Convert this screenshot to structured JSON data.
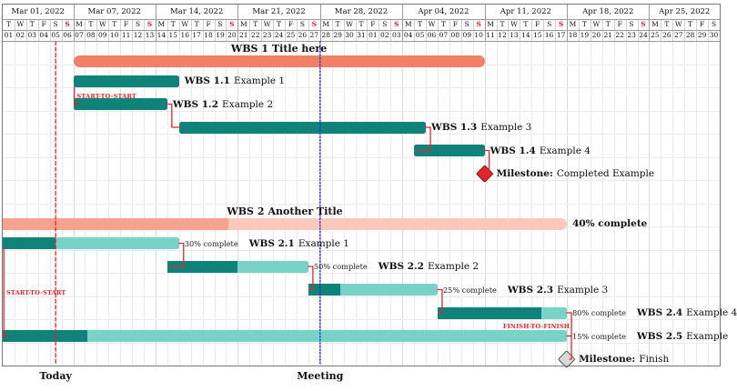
{
  "chart_data": {
    "type": "gantt",
    "timeline": {
      "weeks": [
        {
          "label": "Mar 01, 2022",
          "span": 6
        },
        {
          "label": "Mar 07, 2022",
          "span": 7
        },
        {
          "label": "Mar 14, 2022",
          "span": 7
        },
        {
          "label": "Mar 21, 2022",
          "span": 7
        },
        {
          "label": "Mar 28, 2022",
          "span": 7
        },
        {
          "label": "Apr 04, 2022",
          "span": 7
        },
        {
          "label": "Apr 11, 2022",
          "span": 7
        },
        {
          "label": "Apr 18, 2022",
          "span": 7
        },
        {
          "label": "Apr 25, 2022",
          "span": 6
        }
      ],
      "day_letters": [
        "T",
        "W",
        "T",
        "F",
        "S",
        "S",
        "M",
        "T",
        "W",
        "T",
        "F",
        "S",
        "S",
        "M",
        "T",
        "W",
        "T",
        "F",
        "S",
        "S",
        "M",
        "T",
        "W",
        "T",
        "F",
        "S",
        "S",
        "M",
        "T",
        "W",
        "T",
        "F",
        "S",
        "S",
        "M",
        "T",
        "W",
        "T",
        "F",
        "S",
        "S",
        "M",
        "T",
        "W",
        "T",
        "F",
        "S",
        "S",
        "M",
        "T",
        "W",
        "T",
        "F",
        "S",
        "S",
        "M",
        "T",
        "W",
        "T",
        "F",
        "S"
      ],
      "day_numbers": [
        "01",
        "02",
        "03",
        "04",
        "05",
        "06",
        "07",
        "08",
        "09",
        "10",
        "11",
        "12",
        "13",
        "14",
        "15",
        "16",
        "17",
        "18",
        "19",
        "20",
        "21",
        "22",
        "23",
        "24",
        "25",
        "26",
        "27",
        "28",
        "29",
        "30",
        "31",
        "01",
        "02",
        "03",
        "04",
        "05",
        "06",
        "07",
        "08",
        "09",
        "10",
        "11",
        "12",
        "13",
        "14",
        "15",
        "16",
        "17",
        "18",
        "19",
        "20",
        "21",
        "22",
        "23",
        "24",
        "25",
        "26",
        "27",
        "28",
        "29",
        "30"
      ],
      "sundays": [
        5,
        12,
        19,
        26,
        33,
        40,
        47,
        54
      ]
    },
    "tasks": [
      {
        "id": "g1",
        "row": 0,
        "kind": "group",
        "name_bold": "WBS 1",
        "name_rest": "Title here",
        "start": 6,
        "end": 41
      },
      {
        "id": "t11",
        "row": 1,
        "kind": "task",
        "name_bold": "WBS 1.1",
        "name_rest": "Example 1",
        "start": 6,
        "end": 15
      },
      {
        "id": "t12",
        "row": 2,
        "kind": "task",
        "name_bold": "WBS 1.2",
        "name_rest": "Example 2",
        "start": 6,
        "end": 14
      },
      {
        "id": "t13",
        "row": 3,
        "kind": "task",
        "name_bold": "WBS 1.3",
        "name_rest": "Example 3",
        "start": 15,
        "end": 36
      },
      {
        "id": "t14",
        "row": 4,
        "kind": "task",
        "name_bold": "WBS 1.4",
        "name_rest": "Example 4",
        "start": 35,
        "end": 41
      },
      {
        "id": "m1",
        "row": 5,
        "kind": "milestone",
        "name_bold": "Milestone:",
        "name_rest": "Completed Example",
        "at": 41,
        "fill": "#e3242b",
        "stroke": "#8b1a1a"
      },
      {
        "id": "g2",
        "row": 7,
        "kind": "group",
        "name_bold": "WBS 2",
        "name_rest": "Another Title",
        "start": 0,
        "end": 48,
        "progress": 40,
        "progress_label": "40% complete"
      },
      {
        "id": "t21",
        "row": 8,
        "kind": "task",
        "name_bold": "WBS 2.1",
        "name_rest": "Example 1",
        "start": 0,
        "end": 15,
        "progress": 30,
        "progress_label": "30% complete"
      },
      {
        "id": "t22",
        "row": 9,
        "kind": "task",
        "name_bold": "WBS 2.2",
        "name_rest": "Example 2",
        "start": 14,
        "end": 26,
        "progress": 50,
        "progress_label": "50% complete"
      },
      {
        "id": "t23",
        "row": 10,
        "kind": "task",
        "name_bold": "WBS 2.3",
        "name_rest": "Example 3",
        "start": 26,
        "end": 37,
        "progress": 25,
        "progress_label": "25% complete"
      },
      {
        "id": "t24",
        "row": 11,
        "kind": "task",
        "name_bold": "WBS 2.4",
        "name_rest": "Example 4",
        "start": 37,
        "end": 48,
        "progress": 80,
        "progress_label": "80% complete"
      },
      {
        "id": "t25",
        "row": 12,
        "kind": "task",
        "name_bold": "WBS 2.5",
        "name_rest": "Example",
        "start": 0,
        "end": 48,
        "progress": 15,
        "progress_label": "15% complete"
      },
      {
        "id": "m2",
        "row": 13,
        "kind": "milestone",
        "name_bold": "Milestone:",
        "name_rest": "Finish",
        "at": 48,
        "fill": "#d9d9d9",
        "stroke": "#555555"
      }
    ],
    "links": [
      {
        "from": "t11",
        "to": "t12",
        "type": "start-to-start",
        "label": "START-TO-START"
      },
      {
        "from": "t12",
        "to": "t13",
        "type": "finish-to-start"
      },
      {
        "from": "t13",
        "to": "t14",
        "type": "finish-to-start"
      },
      {
        "from": "t14",
        "to": "m1",
        "type": "finish-to-milestone"
      },
      {
        "from": "t21",
        "to": "t22",
        "type": "finish-to-start"
      },
      {
        "from": "t22",
        "to": "t23",
        "type": "finish-to-start"
      },
      {
        "from": "t23",
        "to": "t24",
        "type": "finish-to-start"
      },
      {
        "from": "t21",
        "to": "t25",
        "type": "start-to-start",
        "label": "START-TO-START"
      },
      {
        "from": "t24",
        "to": "t25",
        "type": "finish-to-finish",
        "label": "FINISH-TO-FINISH"
      },
      {
        "from": "t25",
        "to": "m2",
        "type": "finish-to-milestone"
      }
    ],
    "markers": [
      {
        "id": "today",
        "label": "Today",
        "day": 4.5,
        "color": "#e3242b",
        "style": "dashed"
      },
      {
        "id": "meeting",
        "label": "Meeting",
        "day": 27,
        "color": "#2a2ad6",
        "style": "dotted"
      }
    ],
    "colors": {
      "group_fill": "#f28066",
      "group_light_fill": "#fac9bc",
      "group_progress_fill": "#f5a28e",
      "task_fill": "#0f827a",
      "task_light_fill": "#79d2c8",
      "link": "#e3242b",
      "sunday": "#e3242b",
      "grid": "#ebebeb",
      "grid_week": "#dcdcdc",
      "header_line": "#999999",
      "day_separator": "#cfcfcf",
      "frame": "#777777",
      "text": "#111111",
      "background": "#ffffff"
    }
  }
}
